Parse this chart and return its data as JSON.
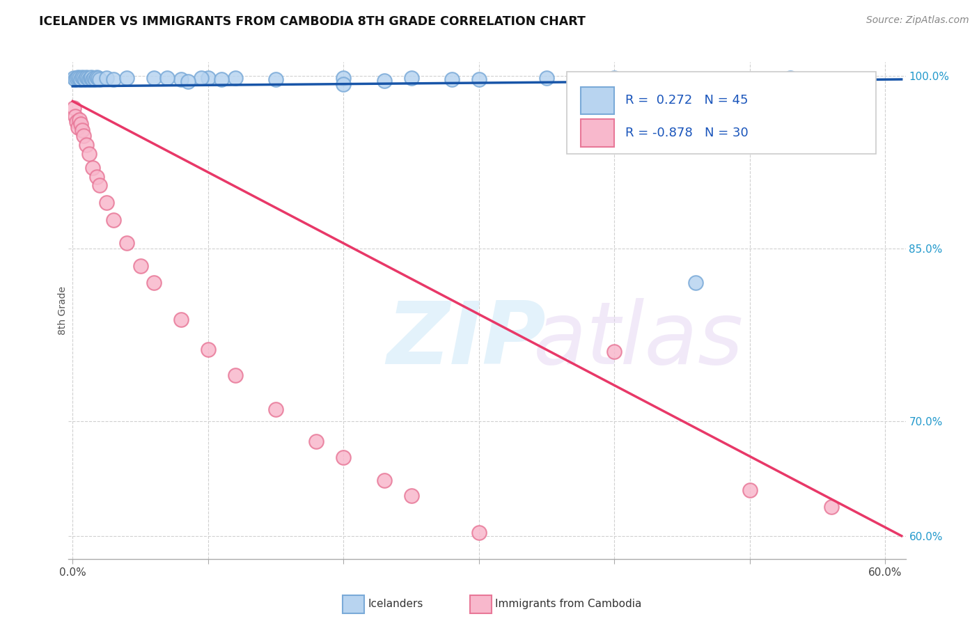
{
  "title": "ICELANDER VS IMMIGRANTS FROM CAMBODIA 8TH GRADE CORRELATION CHART",
  "source": "Source: ZipAtlas.com",
  "ylabel": "8th Grade",
  "blue_R": "0.272",
  "blue_N": "45",
  "pink_R": "-0.878",
  "pink_N": "30",
  "xlim": [
    -0.003,
    0.615
  ],
  "ylim": [
    0.58,
    1.012
  ],
  "ytick_values": [
    0.6,
    0.7,
    0.85,
    1.0
  ],
  "ytick_labels": [
    "60.0%",
    "70.0%",
    "85.0%",
    "100.0%"
  ],
  "xtick_values": [
    0.0,
    0.1,
    0.2,
    0.3,
    0.4,
    0.5,
    0.6
  ],
  "blue_face": "#b8d4f0",
  "blue_edge": "#7aaad8",
  "pink_face": "#f8b8cc",
  "pink_edge": "#e87898",
  "blue_line": "#1855a8",
  "pink_line": "#e83868",
  "grid_color": "#d0d0d0",
  "bg": "#ffffff",
  "blue_x": [
    0.001,
    0.002,
    0.003,
    0.004,
    0.005,
    0.006,
    0.007,
    0.008,
    0.009,
    0.01,
    0.011,
    0.012,
    0.013,
    0.014,
    0.015,
    0.016,
    0.017,
    0.018,
    0.019,
    0.02,
    0.025,
    0.03,
    0.04,
    0.06,
    0.08,
    0.1,
    0.12,
    0.15,
    0.2,
    0.25,
    0.3,
    0.35,
    0.4,
    0.45,
    0.5,
    0.53,
    0.545,
    0.2,
    0.28,
    0.095,
    0.11,
    0.07,
    0.085,
    0.23,
    0.46
  ],
  "blue_y": [
    0.998,
    0.997,
    0.998,
    0.999,
    0.998,
    0.997,
    0.999,
    0.998,
    0.997,
    0.999,
    0.998,
    0.997,
    0.998,
    0.999,
    0.997,
    0.998,
    0.997,
    0.999,
    0.998,
    0.997,
    0.998,
    0.997,
    0.998,
    0.998,
    0.997,
    0.998,
    0.998,
    0.997,
    0.998,
    0.998,
    0.997,
    0.998,
    0.998,
    0.997,
    0.997,
    0.998,
    0.997,
    0.993,
    0.997,
    0.998,
    0.997,
    0.998,
    0.995,
    0.996,
    0.82
  ],
  "pink_x": [
    0.001,
    0.002,
    0.003,
    0.004,
    0.005,
    0.006,
    0.007,
    0.008,
    0.01,
    0.012,
    0.015,
    0.018,
    0.02,
    0.025,
    0.03,
    0.04,
    0.05,
    0.06,
    0.08,
    0.1,
    0.12,
    0.15,
    0.18,
    0.2,
    0.23,
    0.25,
    0.3,
    0.4,
    0.5,
    0.56
  ],
  "pink_y": [
    0.972,
    0.965,
    0.96,
    0.955,
    0.962,
    0.958,
    0.953,
    0.948,
    0.94,
    0.932,
    0.92,
    0.912,
    0.905,
    0.89,
    0.875,
    0.855,
    0.835,
    0.82,
    0.788,
    0.762,
    0.74,
    0.71,
    0.682,
    0.668,
    0.648,
    0.635,
    0.603,
    0.76,
    0.64,
    0.625
  ],
  "blue_trend_x": [
    0.0,
    0.612
  ],
  "blue_trend_y": [
    0.991,
    0.997
  ],
  "pink_trend_x": [
    0.0,
    0.612
  ],
  "pink_trend_y": [
    0.978,
    0.6
  ],
  "icelander_label": "Icelanders",
  "cambodia_label": "Immigrants from Cambodia"
}
